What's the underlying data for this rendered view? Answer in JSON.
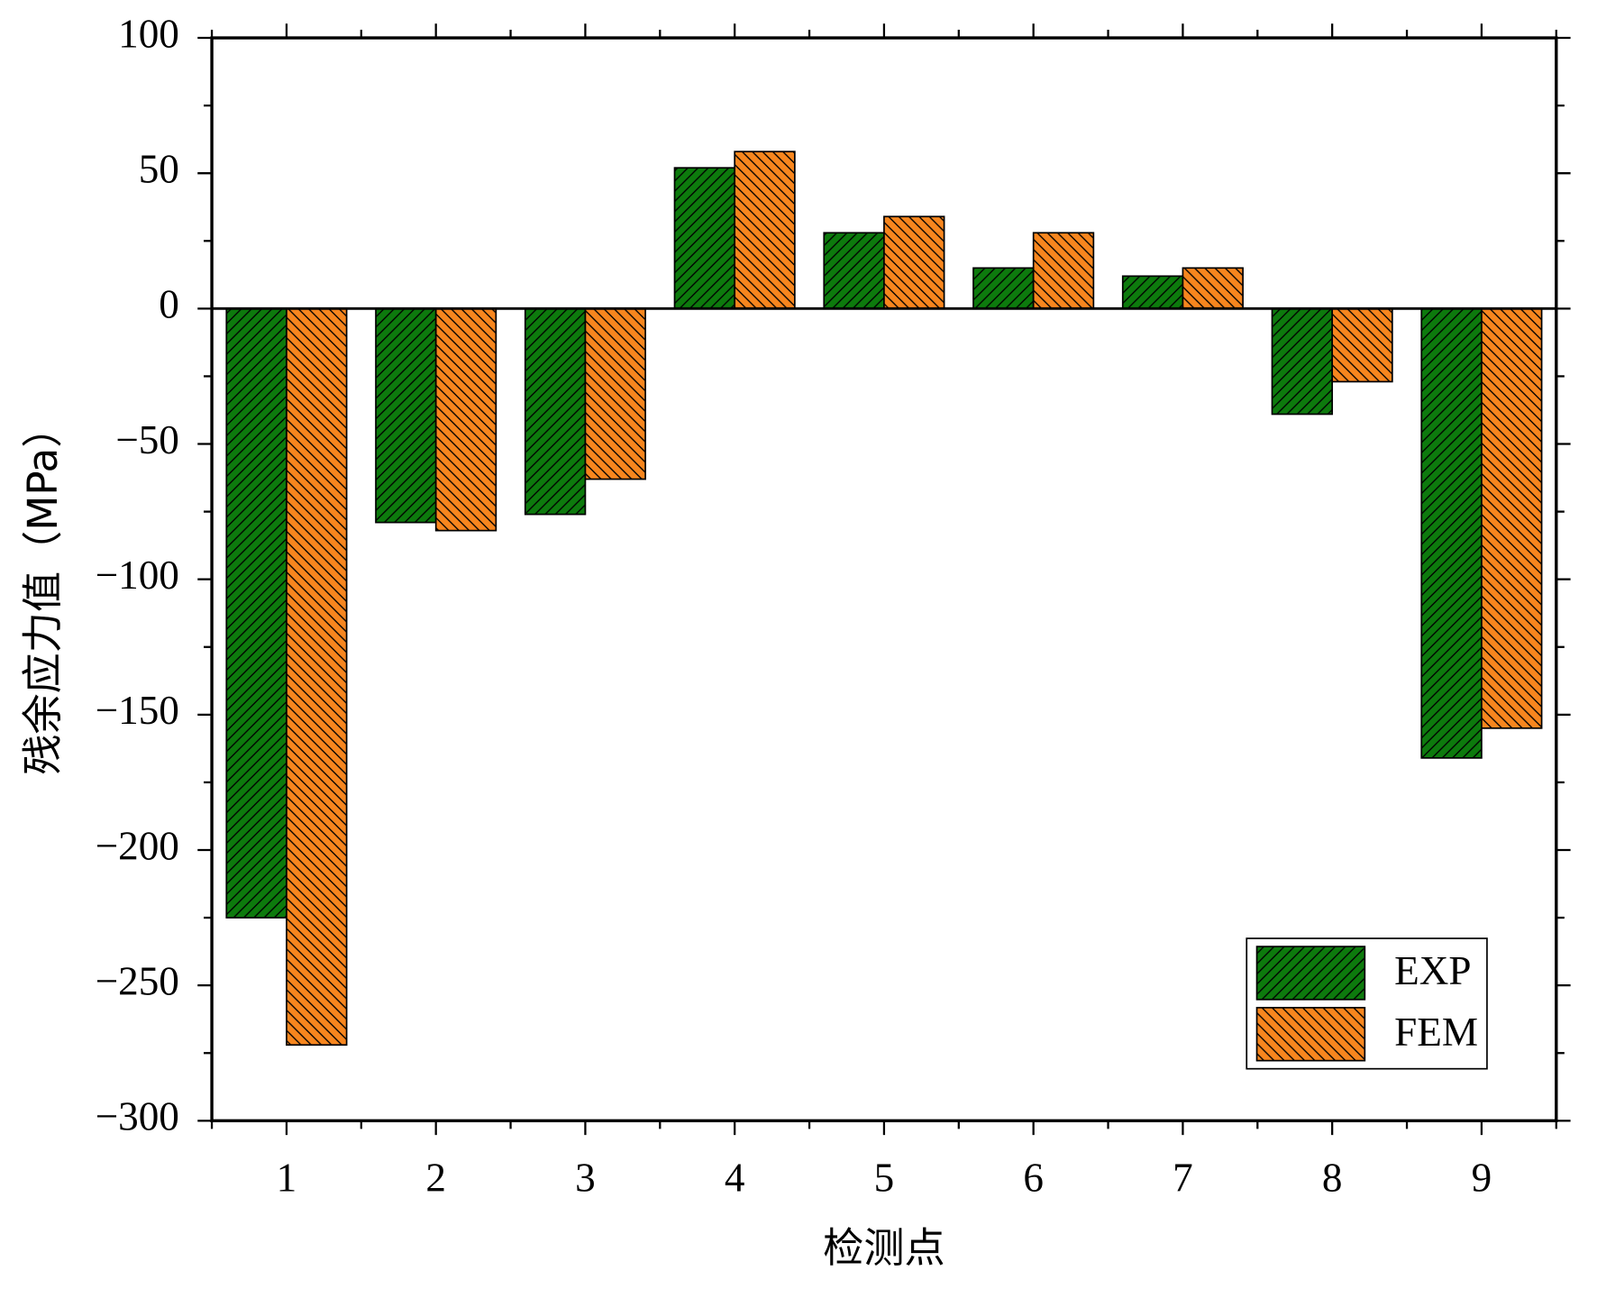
{
  "chart_data": {
    "type": "bar",
    "x_label": "检测点",
    "y_label": "残余应力值（MPa）",
    "categories": [
      "1",
      "2",
      "3",
      "4",
      "5",
      "6",
      "7",
      "8",
      "9"
    ],
    "series": [
      {
        "name": "EXP",
        "color": "#0d7a0d",
        "hatch": "/",
        "values": [
          -225,
          -79,
          -76,
          52,
          28,
          15,
          12,
          -39,
          -166
        ]
      },
      {
        "name": "FEM",
        "color": "#f7861e",
        "hatch": "\\",
        "values": [
          -272,
          -82,
          -63,
          58,
          34,
          28,
          15,
          -27,
          -155
        ]
      }
    ],
    "ylim": [
      -300,
      100
    ],
    "yticks": [
      {
        "value": -300,
        "label": "−300"
      },
      {
        "value": -250,
        "label": "−250"
      },
      {
        "value": -200,
        "label": "−200"
      },
      {
        "value": -150,
        "label": "−150"
      },
      {
        "value": -100,
        "label": "−100"
      },
      {
        "value": -50,
        "label": "−50"
      },
      0,
      50,
      100
    ],
    "legend": "lower right",
    "grid": false
  }
}
